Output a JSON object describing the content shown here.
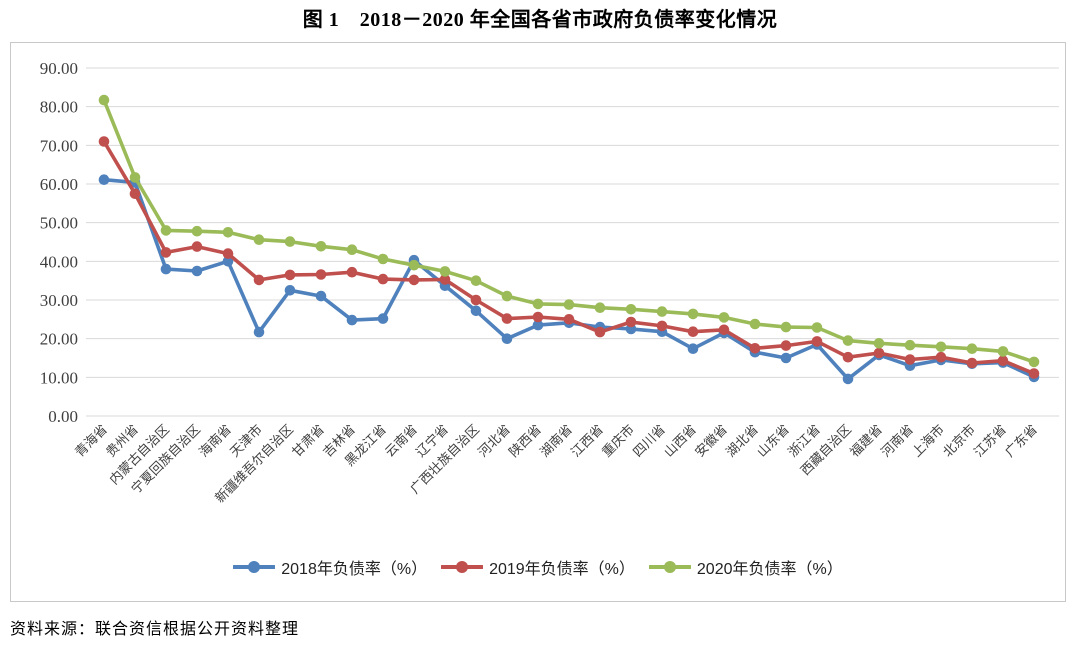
{
  "figure": {
    "title": "图 1　2018－2020 年全国各省市政府负债率变化情况",
    "source_note": "资料来源：联合资信根据公开资料整理"
  },
  "chart_data": {
    "type": "line",
    "title": "图 1　2018－2020 年全国各省市政府负债率变化情况",
    "xlabel": "",
    "ylabel": "",
    "ylim": [
      0,
      90
    ],
    "ytick_step": 10,
    "ytick_decimals": 2,
    "grid": true,
    "legend_position": "bottom",
    "marker": "circle",
    "categories": [
      "青海省",
      "贵州省",
      "内蒙古自治区",
      "宁夏回族自治区",
      "海南省",
      "天津市",
      "新疆维吾尔自治区",
      "甘肃省",
      "吉林省",
      "黑龙江省",
      "云南省",
      "辽宁省",
      "广西壮族自治区",
      "河北省",
      "陕西省",
      "湖南省",
      "江西省",
      "重庆市",
      "四川省",
      "山西省",
      "安徽省",
      "湖北省",
      "山东省",
      "浙江省",
      "西藏自治区",
      "福建省",
      "河南省",
      "上海市",
      "北京市",
      "江苏省",
      "广东省"
    ],
    "series": [
      {
        "name": "2018年负债率（%）",
        "color": "#4F81BD",
        "values": [
          61.1,
          60.4,
          38.0,
          37.5,
          40.0,
          21.7,
          32.5,
          31.0,
          24.8,
          25.2,
          40.3,
          33.7,
          27.2,
          20.0,
          23.5,
          24.1,
          23.0,
          22.5,
          21.8,
          17.4,
          21.5,
          16.5,
          15.0,
          18.5,
          9.6,
          15.8,
          13.0,
          14.5,
          13.5,
          13.8,
          10.1
        ]
      },
      {
        "name": "2019年负债率（%）",
        "color": "#C0504D",
        "values": [
          71.0,
          57.5,
          42.3,
          43.8,
          42.0,
          35.2,
          36.5,
          36.6,
          37.2,
          35.4,
          35.2,
          35.3,
          30.0,
          25.2,
          25.6,
          25.0,
          21.7,
          24.3,
          23.3,
          21.8,
          22.3,
          17.5,
          18.2,
          19.3,
          15.2,
          16.3,
          14.6,
          15.2,
          13.7,
          14.3,
          11.0
        ]
      },
      {
        "name": "2020年负债率（%）",
        "color": "#9BBB59",
        "values": [
          81.7,
          61.7,
          48.0,
          47.8,
          47.5,
          45.6,
          45.1,
          43.9,
          43.0,
          40.6,
          39.0,
          37.4,
          35.0,
          31.0,
          29.0,
          28.8,
          28.0,
          27.6,
          27.0,
          26.4,
          25.5,
          23.8,
          23.0,
          22.9,
          19.5,
          18.8,
          18.3,
          17.9,
          17.4,
          16.7,
          14.0
        ]
      }
    ]
  },
  "colors": {
    "grid_line": "#d9d9d9",
    "frame_border": "#c8c8c8",
    "axis_text": "#3f3f3f"
  }
}
